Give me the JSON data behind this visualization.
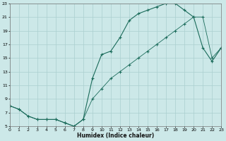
{
  "title": "",
  "xlabel": "Humidex (Indice chaleur)",
  "background_color": "#cce8e8",
  "grid_color": "#aacfcf",
  "line_color": "#1a6b5a",
  "x_min": 0,
  "x_max": 23,
  "y_min": 5,
  "y_max": 23,
  "x_ticks": [
    0,
    1,
    2,
    3,
    4,
    5,
    6,
    7,
    8,
    9,
    10,
    11,
    12,
    13,
    14,
    15,
    16,
    17,
    18,
    19,
    20,
    21,
    22,
    23
  ],
  "y_ticks": [
    5,
    7,
    9,
    11,
    13,
    15,
    17,
    19,
    21,
    23
  ],
  "line1_x": [
    0,
    1,
    2,
    3,
    4,
    5,
    6,
    7,
    8,
    9,
    10,
    11,
    12,
    13,
    14,
    15,
    16,
    17,
    18,
    19,
    20,
    21,
    22,
    23
  ],
  "line1_y": [
    8,
    7.5,
    6.5,
    6,
    6,
    6,
    5.5,
    5,
    6,
    12,
    15.5,
    16,
    18,
    20.5,
    21.5,
    22,
    22.5,
    23,
    23,
    22,
    21,
    16.5,
    14.5,
    16.5
  ],
  "line2_x": [
    0,
    1,
    2,
    3,
    4,
    5,
    6,
    7,
    8,
    9,
    10,
    11,
    12,
    13,
    14,
    15,
    16,
    17,
    18,
    19,
    20,
    21,
    22,
    23
  ],
  "line2_y": [
    8,
    7.5,
    6.5,
    6,
    6,
    6,
    5.5,
    5,
    6,
    9,
    10.5,
    12,
    13,
    14,
    15,
    16,
    17,
    18,
    19,
    20,
    21,
    21,
    15,
    16.5
  ]
}
